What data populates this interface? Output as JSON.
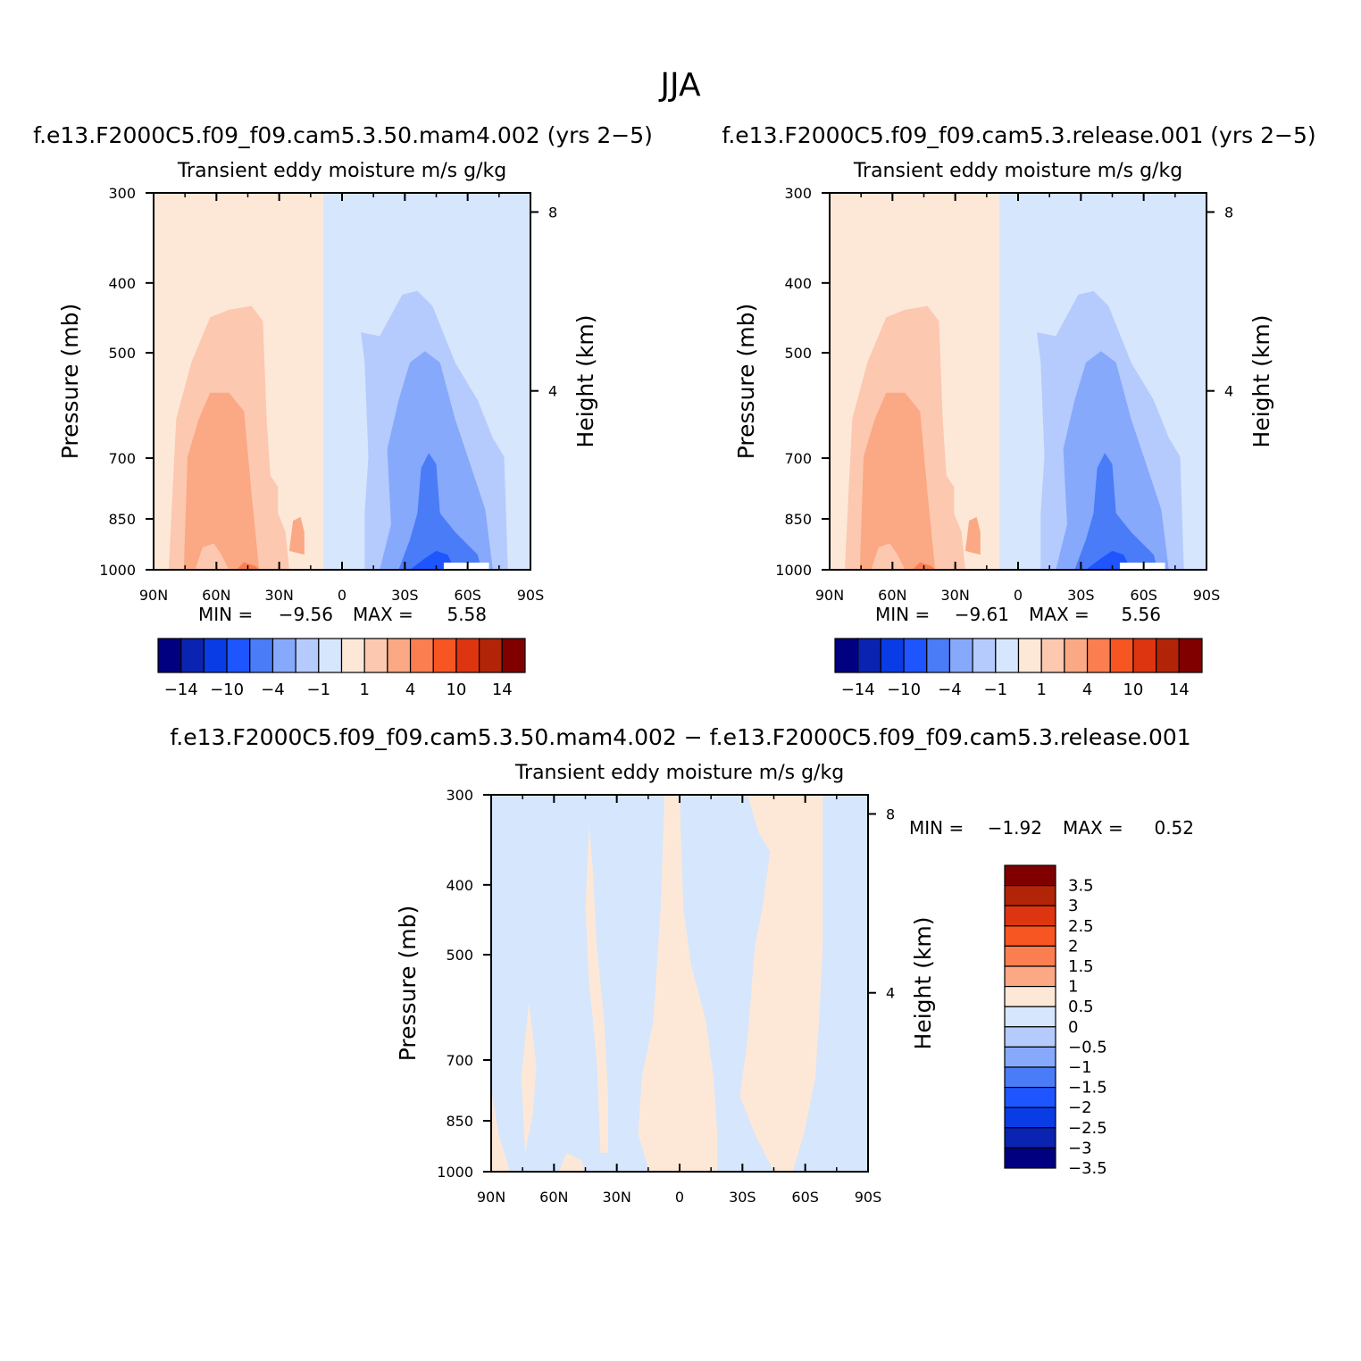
{
  "figure_title": "JJA",
  "chart_data": [
    {
      "type": "heatmap",
      "title": "f.e13.F2000C5.f09_f09.cam5.3.50.mam4.002 (yrs 2−5)",
      "subtitle": "Transient eddy moisture m/s g/kg",
      "ylabel": "Pressure (mb)",
      "ylabel_right": "Height (km)",
      "x_ticks": [
        "90N",
        "60N",
        "30N",
        "0",
        "30S",
        "60S",
        "90S"
      ],
      "y_ticks": [
        "300",
        "400",
        "500",
        "700",
        "850",
        "1000"
      ],
      "y_right_ticks": [
        "8",
        "4"
      ],
      "min_label": "MIN =",
      "min_value": "−9.56",
      "max_label": "MAX =",
      "max_value": "5.58",
      "colorbar_labels": [
        "−14",
        "−10",
        "−4",
        "−1",
        "1",
        "4",
        "10",
        "14"
      ]
    },
    {
      "type": "heatmap",
      "title": "f.e13.F2000C5.f09_f09.cam5.3.release.001 (yrs 2−5)",
      "subtitle": "Transient eddy moisture m/s g/kg",
      "ylabel": "Pressure (mb)",
      "ylabel_right": "Height (km)",
      "x_ticks": [
        "90N",
        "60N",
        "30N",
        "0",
        "30S",
        "60S",
        "90S"
      ],
      "y_ticks": [
        "300",
        "400",
        "500",
        "700",
        "850",
        "1000"
      ],
      "y_right_ticks": [
        "8",
        "4"
      ],
      "min_label": "MIN =",
      "min_value": "−9.61",
      "max_label": "MAX =",
      "max_value": "5.56",
      "colorbar_labels": [
        "−14",
        "−10",
        "−4",
        "−1",
        "1",
        "4",
        "10",
        "14"
      ]
    },
    {
      "type": "heatmap",
      "title": "f.e13.F2000C5.f09_f09.cam5.3.50.mam4.002 − f.e13.F2000C5.f09_f09.cam5.3.release.001",
      "subtitle": "Transient eddy moisture m/s g/kg",
      "ylabel": "Pressure (mb)",
      "ylabel_right": "Height (km)",
      "x_ticks": [
        "90N",
        "60N",
        "30N",
        "0",
        "30S",
        "60S",
        "90S"
      ],
      "y_ticks": [
        "300",
        "400",
        "500",
        "700",
        "850",
        "1000"
      ],
      "y_right_ticks": [
        "8",
        "4"
      ],
      "min_label": "MIN =",
      "min_value": "−1.92",
      "max_label": "MAX =",
      "max_value": "0.52",
      "colorbar_labels": [
        "3.5",
        "3",
        "2.5",
        "2",
        "1.5",
        "1",
        "0.5",
        "0",
        "−0.5",
        "−1",
        "−1.5",
        "−2",
        "−2.5",
        "−3",
        "−3.5"
      ]
    }
  ],
  "colors": {
    "palette": [
      "#000080",
      "#0a23b0",
      "#0a3ce6",
      "#1e55ff",
      "#4a7cf8",
      "#86a9fb",
      "#b5cbfd",
      "#d6e6fc",
      "#fde8d8",
      "#fcc8b0",
      "#fba884",
      "#fa7e50",
      "#f75522",
      "#de3511",
      "#b22408",
      "#800000"
    ],
    "diff_palette": [
      "#800000",
      "#b22408",
      "#de3511",
      "#f75522",
      "#fa7e50",
      "#fba884",
      "#fde8d8",
      "#d6e6fc",
      "#b5cbfd",
      "#86a9fb",
      "#4a7cf8",
      "#1e55ff",
      "#0a3ce6",
      "#0a23b0",
      "#000080"
    ]
  }
}
